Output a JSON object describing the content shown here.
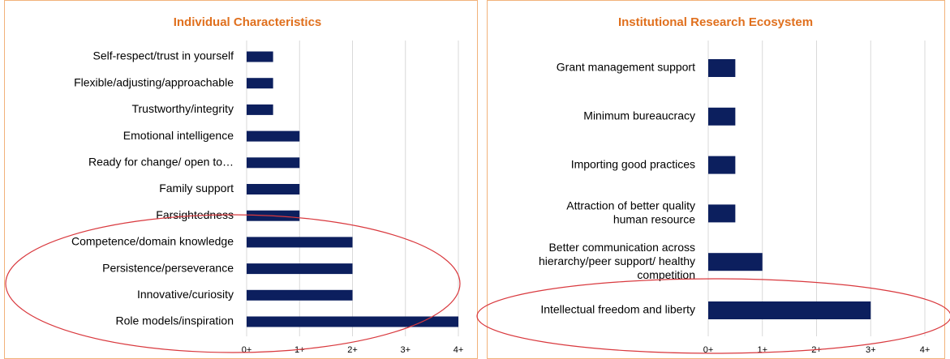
{
  "chart_data": [
    {
      "type": "bar",
      "orientation": "horizontal",
      "title": "Individual Characteristics",
      "categories": [
        "Self-respect/trust in yourself",
        "Flexible/adjusting/approachable",
        "Trustworthy/integrity",
        "Emotional intelligence",
        "Ready for change/ open to…",
        "Family support",
        "Farsightedness",
        "Competence/domain knowledge",
        "Persistence/perseverance",
        "Innovative/curiosity",
        "Role models/inspiration"
      ],
      "values": [
        0.5,
        0.5,
        0.5,
        1,
        1,
        1,
        1,
        2,
        2,
        2,
        4
      ],
      "color": "#0c1f5e",
      "xlim": [
        0,
        4
      ],
      "xticks": [
        {
          "value": 0,
          "label": "0+"
        },
        {
          "value": 1,
          "label": "1+"
        },
        {
          "value": 2,
          "label": "2+"
        },
        {
          "value": 3,
          "label": "3+"
        },
        {
          "value": 4,
          "label": "4+"
        }
      ],
      "grid": true
    },
    {
      "type": "bar",
      "orientation": "horizontal",
      "title": "Institutional Research Ecosystem",
      "categories": [
        "Grant management support",
        "Minimum bureaucracy",
        "Importing good practices",
        [
          "Attraction of better quality",
          "human resource"
        ],
        [
          "Better communication across",
          "hierarchy/peer support/ healthy",
          "competition"
        ],
        "Intellectual freedom and liberty"
      ],
      "values": [
        0.5,
        0.5,
        0.5,
        0.5,
        1,
        3
      ],
      "color": "#0c1f5e",
      "xlim": [
        0,
        4
      ],
      "xticks": [
        {
          "value": 0,
          "label": "0+"
        },
        {
          "value": 1,
          "label": "1+"
        },
        {
          "value": 2,
          "label": "2+"
        },
        {
          "value": 3,
          "label": "3+"
        },
        {
          "value": 4,
          "label": "4+"
        }
      ],
      "grid": true
    }
  ]
}
